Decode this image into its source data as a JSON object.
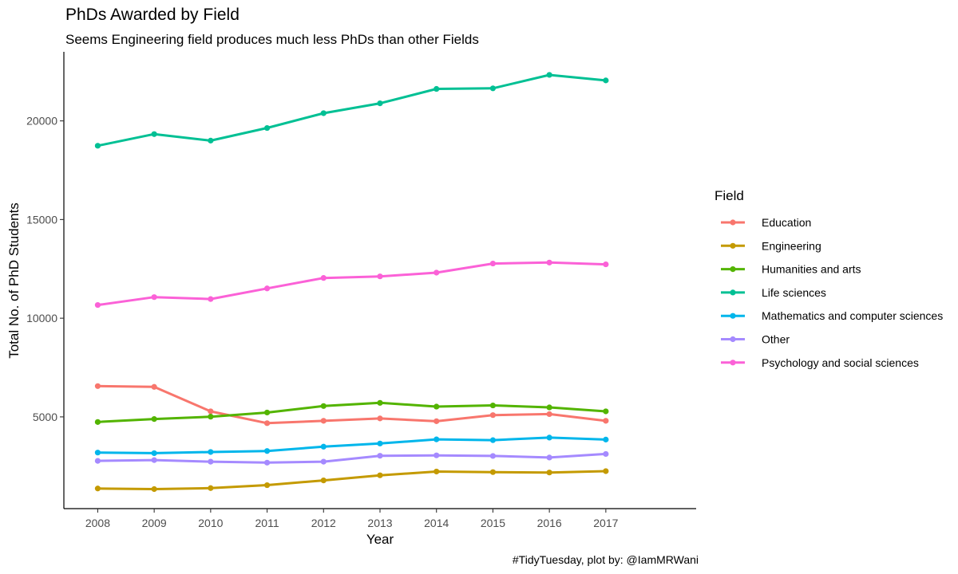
{
  "chart_data": {
    "type": "line",
    "title": "PhDs Awarded by Field",
    "subtitle": "Seems Engineering field produces much less PhDs than other Fields",
    "xlabel": "Year",
    "ylabel": "Total No. of PhD Students",
    "caption": "#TidyTuesday, plot by: @IamMRWani",
    "legend_title": "Field",
    "legend_position": "right",
    "grid": false,
    "x": [
      2008,
      2009,
      2010,
      2011,
      2012,
      2013,
      2014,
      2015,
      2016,
      2017
    ],
    "xlim": [
      2007.4,
      2018.6
    ],
    "ylim": [
      350,
      23500
    ],
    "yticks": [
      5000,
      10000,
      15000,
      20000
    ],
    "series": [
      {
        "name": "Education",
        "color": "#F8766D",
        "values": [
          6560,
          6520,
          5280,
          4680,
          4800,
          4920,
          4780,
          5090,
          5140,
          4800
        ]
      },
      {
        "name": "Engineering",
        "color": "#C49A00",
        "values": [
          1370,
          1340,
          1390,
          1540,
          1780,
          2040,
          2230,
          2200,
          2180,
          2250
        ]
      },
      {
        "name": "Humanities and arts",
        "color": "#53B400",
        "values": [
          4740,
          4890,
          5010,
          5220,
          5550,
          5710,
          5520,
          5580,
          5480,
          5280
        ]
      },
      {
        "name": "Life sciences",
        "color": "#00C094",
        "values": [
          18740,
          19330,
          19000,
          19640,
          20390,
          20890,
          21620,
          21650,
          22330,
          22050
        ]
      },
      {
        "name": "Mathematics and computer sciences",
        "color": "#00B6EB",
        "values": [
          3190,
          3160,
          3220,
          3270,
          3490,
          3650,
          3860,
          3820,
          3950,
          3850
        ]
      },
      {
        "name": "Other",
        "color": "#A58AFF",
        "values": [
          2770,
          2810,
          2730,
          2680,
          2730,
          3030,
          3050,
          3020,
          2940,
          3120
        ]
      },
      {
        "name": "Psychology and social sciences",
        "color": "#FB61D7",
        "values": [
          10670,
          11070,
          10970,
          11510,
          12040,
          12120,
          12310,
          12770,
          12820,
          12730
        ]
      }
    ]
  }
}
